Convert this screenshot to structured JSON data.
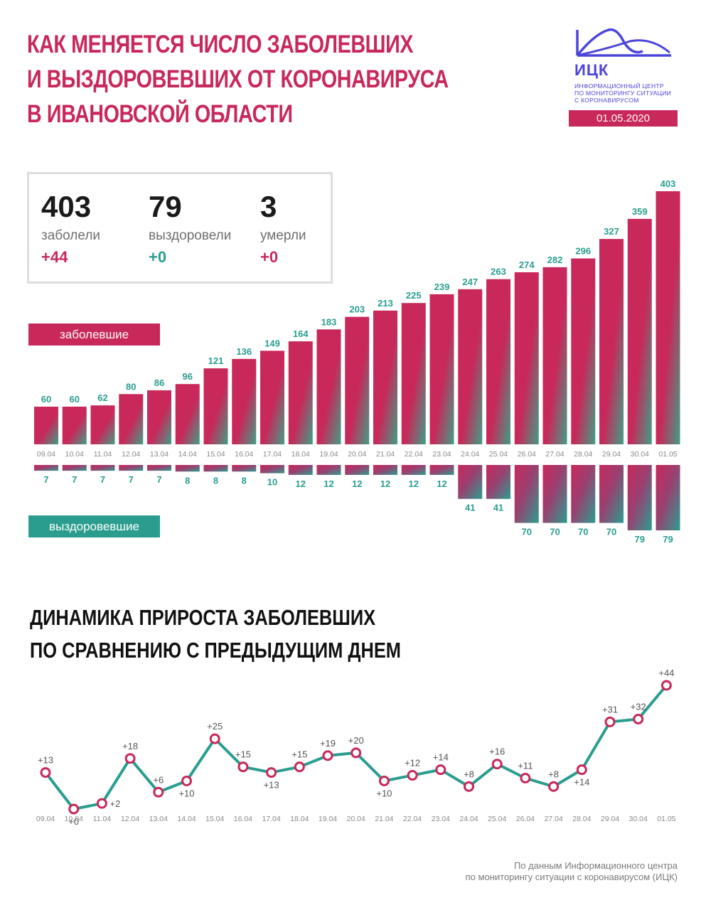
{
  "header": {
    "title_lines": [
      "КАК МЕНЯЕТСЯ ЧИСЛО ЗАБОЛЕВШИХ",
      "И ВЫЗДОРОВЕВШИХ ОТ КОРОНАВИРУСА",
      "В ИВАНОВСКОЙ ОБЛАСТИ"
    ],
    "logo_abbr": "ИЦК",
    "logo_full": [
      "ИНФОРМАЦИОННЫЙ ЦЕНТР",
      "ПО МОНИТОРИНГУ СИТУАЦИИ",
      "С КОРОНАВИРУСОМ"
    ],
    "date": "01.05.2020"
  },
  "colors": {
    "accent": "#c8285a",
    "teal": "#2a9d8f",
    "logo": "#4a45d9"
  },
  "stats": [
    {
      "value": "403",
      "label": "заболели",
      "delta": "+44",
      "delta_color": "#c8285a"
    },
    {
      "value": "79",
      "label": "выздоровели",
      "delta": "+0",
      "delta_color": "#2a9d8f"
    },
    {
      "value": "3",
      "label": "умерли",
      "delta": "+0",
      "delta_color": "#c8285a"
    }
  ],
  "legend": {
    "sick": "заболевшие",
    "recovered": "выздоровевшие"
  },
  "chart_data": [
    {
      "type": "bar",
      "categories": [
        "09.04",
        "10.04",
        "11.04",
        "12.04",
        "13.04",
        "14.04",
        "15.04",
        "16.04",
        "17.04",
        "18.04",
        "19.04",
        "20.04",
        "21.04",
        "22.04",
        "23.04",
        "24.04",
        "25.04",
        "26.04",
        "27.04",
        "28.04",
        "29.04",
        "30.04",
        "01.05"
      ],
      "series": [
        {
          "name": "заболевшие",
          "values": [
            60,
            60,
            62,
            80,
            86,
            96,
            121,
            136,
            149,
            164,
            183,
            203,
            213,
            225,
            239,
            247,
            263,
            274,
            282,
            296,
            327,
            359,
            403
          ]
        },
        {
          "name": "выздоровевшие",
          "values": [
            7,
            7,
            7,
            7,
            7,
            8,
            8,
            8,
            10,
            12,
            12,
            12,
            12,
            12,
            12,
            41,
            41,
            70,
            70,
            70,
            70,
            79,
            79
          ]
        }
      ],
      "title": "КАК МЕНЯЕТСЯ ЧИСЛО ЗАБОЛЕВШИХ И ВЫЗДОРОВЕВШИХ ОТ КОРОНАВИРУСА В ИВАНОВСКОЙ ОБЛАСТИ",
      "legend": "left"
    },
    {
      "type": "line",
      "title_lines": [
        "ДИНАМИКА ПРИРОСТА ЗАБОЛЕВШИХ",
        "ПО СРАВНЕНИЮ С ПРЕДЫДУЩИМ ДНЕМ"
      ],
      "x": [
        "09.04",
        "10.04",
        "11.04",
        "12.04",
        "13.04",
        "14.04",
        "15.04",
        "16.04",
        "17.04",
        "18.04",
        "19.04",
        "20.04",
        "21.04",
        "22.04",
        "23.04",
        "24.04",
        "25.04",
        "26.04",
        "27.04",
        "28.04",
        "29.04",
        "30.04",
        "01.05"
      ],
      "values": [
        13,
        0,
        2,
        18,
        6,
        10,
        25,
        15,
        13,
        15,
        19,
        20,
        10,
        12,
        14,
        8,
        16,
        11,
        8,
        14,
        31,
        32,
        44
      ],
      "labels": [
        "+13",
        "+0",
        "+2",
        "+18",
        "+6",
        "+10",
        "+25",
        "+15",
        "+13",
        "+15",
        "+19",
        "+20",
        "+10",
        "+12",
        "+14",
        "+8",
        "+16",
        "+11",
        "+8",
        "+14",
        "+31",
        "+32",
        "+44"
      ],
      "label_pos": [
        "above",
        "below",
        "right",
        "above",
        "above",
        "below",
        "above",
        "above",
        "below",
        "above",
        "above",
        "above",
        "below",
        "above",
        "above",
        "above",
        "above",
        "above",
        "above",
        "below",
        "above",
        "above",
        "above"
      ]
    }
  ],
  "footer": {
    "source_lines": [
      "По данным Информационного центра",
      "по мониторингу ситуации с коронавирусом (ИЦК)"
    ]
  }
}
